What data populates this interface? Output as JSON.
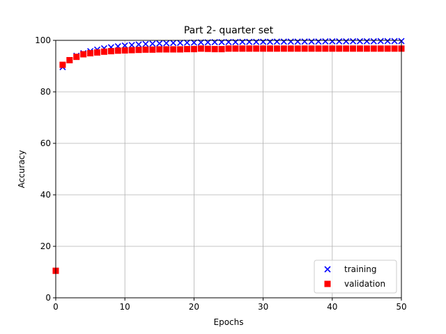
{
  "chart_data": {
    "type": "scatter",
    "title": "Part 2- quarter set",
    "xlabel": "Epochs",
    "ylabel": "Accuracy",
    "xlim": [
      0,
      50
    ],
    "ylim": [
      0,
      100
    ],
    "xticks": [
      0,
      10,
      20,
      30,
      40,
      50
    ],
    "yticks": [
      0,
      20,
      40,
      60,
      80,
      100
    ],
    "grid": true,
    "legend_position": "lower-right",
    "series": [
      {
        "name": "training",
        "marker": "x",
        "color": "#0000ff",
        "x": [
          1,
          2,
          3,
          4,
          5,
          6,
          7,
          8,
          9,
          10,
          11,
          12,
          13,
          14,
          15,
          16,
          17,
          18,
          19,
          20,
          21,
          22,
          23,
          24,
          25,
          26,
          27,
          28,
          29,
          30,
          31,
          32,
          33,
          34,
          35,
          36,
          37,
          38,
          39,
          40,
          41,
          42,
          43,
          44,
          45,
          46,
          47,
          48,
          49,
          50
        ],
        "y": [
          89.6,
          92.3,
          94.0,
          95.0,
          95.8,
          96.4,
          96.9,
          97.3,
          97.7,
          98.0,
          98.2,
          98.4,
          98.6,
          98.7,
          98.8,
          98.9,
          99.0,
          99.05,
          99.1,
          99.15,
          99.2,
          99.25,
          99.3,
          99.3,
          99.35,
          99.35,
          99.4,
          99.4,
          99.4,
          99.45,
          99.45,
          99.5,
          99.5,
          99.5,
          99.5,
          99.55,
          99.55,
          99.55,
          99.6,
          99.6,
          99.6,
          99.6,
          99.65,
          99.65,
          99.65,
          99.65,
          99.7,
          99.7,
          99.7,
          99.7
        ]
      },
      {
        "name": "validation",
        "marker": "s",
        "color": "#ff0000",
        "x": [
          0,
          1,
          2,
          3,
          4,
          5,
          6,
          7,
          8,
          9,
          10,
          11,
          12,
          13,
          14,
          15,
          16,
          17,
          18,
          19,
          20,
          21,
          22,
          23,
          24,
          25,
          26,
          27,
          28,
          29,
          30,
          31,
          32,
          33,
          34,
          35,
          36,
          37,
          38,
          39,
          40,
          41,
          42,
          43,
          44,
          45,
          46,
          47,
          48,
          49,
          50
        ],
        "y": [
          10.5,
          90.5,
          92.3,
          93.6,
          94.6,
          95.0,
          95.3,
          95.6,
          95.8,
          96.0,
          96.1,
          96.2,
          96.3,
          96.4,
          96.4,
          96.5,
          96.5,
          96.5,
          96.5,
          96.6,
          96.6,
          96.8,
          96.7,
          96.6,
          96.6,
          96.8,
          96.8,
          96.8,
          96.8,
          96.8,
          96.8,
          96.8,
          96.8,
          96.8,
          96.8,
          96.8,
          96.8,
          96.8,
          96.8,
          96.8,
          96.8,
          96.8,
          96.8,
          96.8,
          96.8,
          96.8,
          96.8,
          96.8,
          96.8,
          96.8,
          96.8
        ]
      }
    ]
  }
}
